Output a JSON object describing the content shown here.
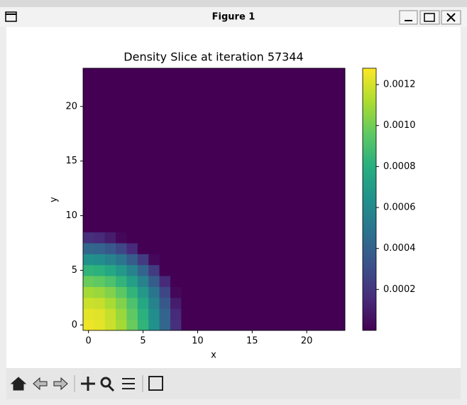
{
  "window_title": "Figure 1",
  "chart_data": {
    "type": "heatmap",
    "title": "Density Slice at iteration 57344",
    "x_label": "x",
    "y_label": "y",
    "xlim": [
      -0.5,
      23.5
    ],
    "ylim": [
      -0.5,
      23.5
    ],
    "xticks": [
      0,
      5,
      10,
      15,
      20
    ],
    "yticks": [
      0,
      5,
      10,
      15,
      20
    ],
    "colormap": "viridis",
    "clim": [
      0,
      0.00128
    ],
    "colorbar_ticks": [
      0.0002,
      0.0004,
      0.0006,
      0.0008,
      {
        "value": 0.001,
        "label": "0.0010"
      },
      0.0012
    ],
    "z": [
      [
        0.00125,
        0.00123,
        0.00118,
        0.0011,
        0.00098,
        0.00083,
        0.00064,
        0.00042,
        0.00017,
        0,
        0,
        0,
        0,
        0,
        0,
        0,
        0,
        0,
        0,
        0,
        0,
        0,
        0,
        0
      ],
      [
        0.00123,
        0.00122,
        0.00117,
        0.00108,
        0.00096,
        0.00081,
        0.00062,
        0.00041,
        0.00015,
        0,
        0,
        0,
        0,
        0,
        0,
        0,
        0,
        0,
        0,
        0,
        0,
        0,
        0,
        0
      ],
      [
        0.00118,
        0.00117,
        0.00111,
        0.00103,
        0.00091,
        0.00076,
        0.00057,
        0.00035,
        0.0001,
        0,
        0,
        0,
        0,
        0,
        0,
        0,
        0,
        0,
        0,
        0,
        0,
        0,
        0,
        0
      ],
      [
        0.0011,
        0.00108,
        0.00103,
        0.00095,
        0.00083,
        0.00068,
        0.00049,
        0.00027,
        2e-05,
        0,
        0,
        0,
        0,
        0,
        0,
        0,
        0,
        0,
        0,
        0,
        0,
        0,
        0,
        0
      ],
      [
        0.00098,
        0.00096,
        0.00091,
        0.00083,
        0.00071,
        0.00056,
        0.00037,
        0.00015,
        0,
        0,
        0,
        0,
        0,
        0,
        0,
        0,
        0,
        0,
        0,
        0,
        0,
        0,
        0,
        0
      ],
      [
        0.00083,
        0.00081,
        0.00076,
        0.00068,
        0.00056,
        0.00041,
        0.00022,
        0,
        0,
        0,
        0,
        0,
        0,
        0,
        0,
        0,
        0,
        0,
        0,
        0,
        0,
        0,
        0,
        0
      ],
      [
        0.00064,
        0.00062,
        0.00057,
        0.00049,
        0.00037,
        0.00022,
        3e-05,
        0,
        0,
        0,
        0,
        0,
        0,
        0,
        0,
        0,
        0,
        0,
        0,
        0,
        0,
        0,
        0,
        0
      ],
      [
        0.00042,
        0.00041,
        0.00035,
        0.00027,
        0.00015,
        0,
        0,
        0,
        0,
        0,
        0,
        0,
        0,
        0,
        0,
        0,
        0,
        0,
        0,
        0,
        0,
        0,
        0,
        0
      ],
      [
        0.00017,
        0.00015,
        0.0001,
        2e-05,
        0,
        0,
        0,
        0,
        0,
        0,
        0,
        0,
        0,
        0,
        0,
        0,
        0,
        0,
        0,
        0,
        0,
        0,
        0,
        0
      ],
      [
        0,
        0,
        0,
        0,
        0,
        0,
        0,
        0,
        0,
        0,
        0,
        0,
        0,
        0,
        0,
        0,
        0,
        0,
        0,
        0,
        0,
        0,
        0,
        0
      ],
      [
        0,
        0,
        0,
        0,
        0,
        0,
        0,
        0,
        0,
        0,
        0,
        0,
        0,
        0,
        0,
        0,
        0,
        0,
        0,
        0,
        0,
        0,
        0,
        0
      ],
      [
        0,
        0,
        0,
        0,
        0,
        0,
        0,
        0,
        0,
        0,
        0,
        0,
        0,
        0,
        0,
        0,
        0,
        0,
        0,
        0,
        0,
        0,
        0,
        0
      ],
      [
        0,
        0,
        0,
        0,
        0,
        0,
        0,
        0,
        0,
        0,
        0,
        0,
        0,
        0,
        0,
        0,
        0,
        0,
        0,
        0,
        0,
        0,
        0,
        0
      ],
      [
        0,
        0,
        0,
        0,
        0,
        0,
        0,
        0,
        0,
        0,
        0,
        0,
        0,
        0,
        0,
        0,
        0,
        0,
        0,
        0,
        0,
        0,
        0,
        0
      ],
      [
        0,
        0,
        0,
        0,
        0,
        0,
        0,
        0,
        0,
        0,
        0,
        0,
        0,
        0,
        0,
        0,
        0,
        0,
        0,
        0,
        0,
        0,
        0,
        0
      ],
      [
        0,
        0,
        0,
        0,
        0,
        0,
        0,
        0,
        0,
        0,
        0,
        0,
        0,
        0,
        0,
        0,
        0,
        0,
        0,
        0,
        0,
        0,
        0,
        0
      ],
      [
        0,
        0,
        0,
        0,
        0,
        0,
        0,
        0,
        0,
        0,
        0,
        0,
        0,
        0,
        0,
        0,
        0,
        0,
        0,
        0,
        0,
        0,
        0,
        0
      ],
      [
        0,
        0,
        0,
        0,
        0,
        0,
        0,
        0,
        0,
        0,
        0,
        0,
        0,
        0,
        0,
        0,
        0,
        0,
        0,
        0,
        0,
        0,
        0,
        0
      ],
      [
        0,
        0,
        0,
        0,
        0,
        0,
        0,
        0,
        0,
        0,
        0,
        0,
        0,
        0,
        0,
        0,
        0,
        0,
        0,
        0,
        0,
        0,
        0,
        0
      ],
      [
        0,
        0,
        0,
        0,
        0,
        0,
        0,
        0,
        0,
        0,
        0,
        0,
        0,
        0,
        0,
        0,
        0,
        0,
        0,
        0,
        0,
        0,
        0,
        0
      ],
      [
        0,
        0,
        0,
        0,
        0,
        0,
        0,
        0,
        0,
        0,
        0,
        0,
        0,
        0,
        0,
        0,
        0,
        0,
        0,
        0,
        0,
        0,
        0,
        0
      ],
      [
        0,
        0,
        0,
        0,
        0,
        0,
        0,
        0,
        0,
        0,
        0,
        0,
        0,
        0,
        0,
        0,
        0,
        0,
        0,
        0,
        0,
        0,
        0,
        0
      ],
      [
        0,
        0,
        0,
        0,
        0,
        0,
        0,
        0,
        0,
        0,
        0,
        0,
        0,
        0,
        0,
        0,
        0,
        0,
        0,
        0,
        0,
        0,
        0,
        0
      ],
      [
        0,
        0,
        0,
        0,
        0,
        0,
        0,
        0,
        0,
        0,
        0,
        0,
        0,
        0,
        0,
        0,
        0,
        0,
        0,
        0,
        0,
        0,
        0,
        0
      ]
    ]
  }
}
